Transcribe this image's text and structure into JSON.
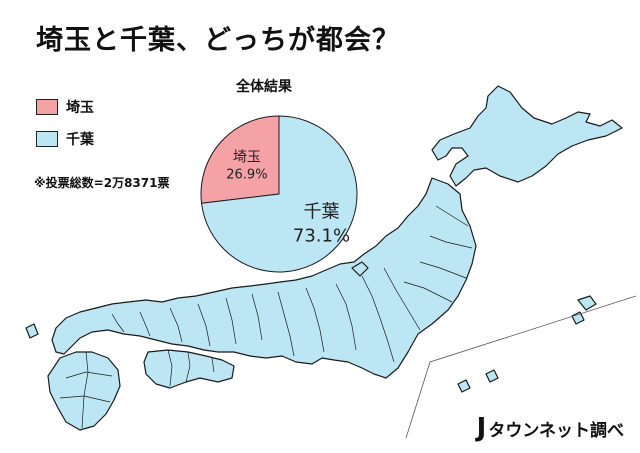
{
  "page": {
    "title": "埼玉と千葉、どっちが都会？"
  },
  "legend": {
    "items": [
      {
        "label": "埼玉",
        "color": "#f4a2a6"
      },
      {
        "label": "千葉",
        "color": "#bde6f4"
      }
    ]
  },
  "note": {
    "total_votes": "※投票総数=2万8371票"
  },
  "credit": {
    "mark": "J",
    "text": "タウンネット調べ"
  },
  "colors": {
    "land": "#bde6f4",
    "outline": "#1a1a1a",
    "background": "#ffffff"
  },
  "chart_data": {
    "type": "pie",
    "title": "全体結果",
    "slices": [
      {
        "name": "埼玉",
        "value": 26.9,
        "label": "26.9%",
        "color": "#f4a2a6"
      },
      {
        "name": "千葉",
        "value": 73.1,
        "label": "73.1%",
        "color": "#bde6f4"
      }
    ],
    "start": "12 o'clock, counter-clockwise for the first slice"
  }
}
